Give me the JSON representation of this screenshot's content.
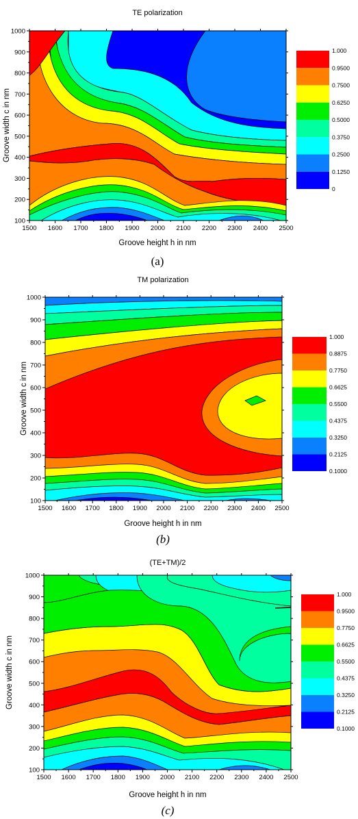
{
  "colors": {
    "levels": [
      "#0000ff",
      "#0a80ff",
      "#00ffff",
      "#00ff9f",
      "#00ee00",
      "#ffff00",
      "#ff8000",
      "#ff0000"
    ],
    "frame": "#000000",
    "contour_line": "#000000"
  },
  "chart_data": [
    {
      "type": "heatmap",
      "title": "TE polarization",
      "xlabel": "Groove height h in nm",
      "ylabel": "Groove width c in nm",
      "xlim": [
        1500,
        2500
      ],
      "ylim": [
        100,
        1000
      ],
      "x_ticks": [
        "1500",
        "1600",
        "1700",
        "1800",
        "1900",
        "2000",
        "2100",
        "2200",
        "2300",
        "2400",
        "2500"
      ],
      "y_ticks": [
        "100",
        "200",
        "300",
        "400",
        "500",
        "600",
        "700",
        "800",
        "900",
        "1000"
      ],
      "legend_labels": [
        "1.000",
        "0.9500",
        "0.7500",
        "0.6250",
        "0.5000",
        "0.3750",
        "0.2500",
        "0.1250",
        "0"
      ],
      "legend_placement": "right",
      "caption": "(a)",
      "caption_style": "normal",
      "grid": false
    },
    {
      "type": "heatmap",
      "title": "TM polarization",
      "xlabel": "Groove height h in nm",
      "ylabel": "Groove width c in nm",
      "xlim": [
        1500,
        2500
      ],
      "ylim": [
        100,
        1000
      ],
      "x_ticks": [
        "1500",
        "1600",
        "1700",
        "1800",
        "1900",
        "2000",
        "2100",
        "2200",
        "2300",
        "2400",
        "2500"
      ],
      "y_ticks": [
        "100",
        "200",
        "300",
        "400",
        "500",
        "600",
        "700",
        "800",
        "900",
        "1000"
      ],
      "legend_labels": [
        "1.000",
        "0.8875",
        "0.7750",
        "0.6625",
        "0.5500",
        "0.4375",
        "0.3250",
        "0.2125",
        "0.1000"
      ],
      "legend_placement": "right",
      "caption": "(b)",
      "caption_style": "italic",
      "grid": false
    },
    {
      "type": "heatmap",
      "title": "(TE+TM)/2",
      "xlabel": "Groove height h in nm",
      "ylabel": "Groove width c in nm",
      "xlim": [
        1500,
        2500
      ],
      "ylim": [
        100,
        1000
      ],
      "x_ticks": [
        "1500",
        "1600",
        "1700",
        "1800",
        "1900",
        "2000",
        "2100",
        "2200",
        "2300",
        "2400",
        "2500"
      ],
      "y_ticks": [
        "100",
        "200",
        "300",
        "400",
        "500",
        "600",
        "700",
        "800",
        "900",
        "1000"
      ],
      "legend_labels": [
        "1.000",
        "0.9500",
        "0.7750",
        "0.6625",
        "0.5500",
        "0.4375",
        "0.3250",
        "0.2125",
        "0.1000"
      ],
      "legend_placement": "right",
      "caption": "(c)",
      "caption_style": "italic",
      "grid": false
    }
  ]
}
